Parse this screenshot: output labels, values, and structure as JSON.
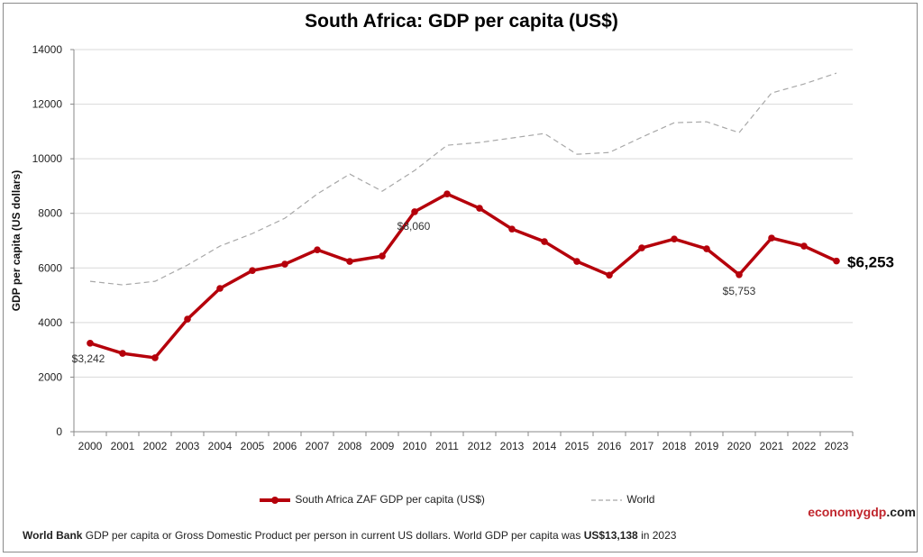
{
  "chart_data": {
    "type": "line",
    "title": "South Africa: GDP per capita (US$)",
    "ylabel": "GDP per capita (US dollars)",
    "xlabel": "",
    "ylim": [
      0,
      14000
    ],
    "yticks": [
      0,
      2000,
      4000,
      6000,
      8000,
      10000,
      12000,
      14000
    ],
    "grid": true,
    "legend_placement": "bottom",
    "categories": [
      "2000",
      "2001",
      "2002",
      "2003",
      "2004",
      "2005",
      "2006",
      "2007",
      "2008",
      "2009",
      "2010",
      "2011",
      "2012",
      "2013",
      "2014",
      "2015",
      "2016",
      "2017",
      "2018",
      "2019",
      "2020",
      "2021",
      "2022",
      "2023"
    ],
    "series": [
      {
        "name": "South Africa ZAF GDP per capita (US$)",
        "color": "#b5000b",
        "style": "solid-markers",
        "values": [
          3242,
          2870,
          2710,
          4125,
          5250,
          5905,
          6140,
          6665,
          6240,
          6435,
          8060,
          8710,
          8185,
          7425,
          6965,
          6240,
          5735,
          6735,
          7060,
          6700,
          5753,
          7095,
          6800,
          6253
        ]
      },
      {
        "name": "World",
        "color": "#a8a8a8",
        "style": "dashed",
        "values": [
          5510,
          5380,
          5510,
          6105,
          6800,
          7260,
          7820,
          8710,
          9440,
          8810,
          9570,
          10495,
          10595,
          10760,
          10925,
          10165,
          10230,
          10790,
          11320,
          11355,
          10955,
          12410,
          12740,
          13138
        ]
      }
    ],
    "annotations": [
      {
        "category": "2000",
        "text": "$3,242"
      },
      {
        "category": "2010",
        "text": "$8,060"
      },
      {
        "category": "2020",
        "text": "$5,753"
      },
      {
        "category": "2023",
        "text": "$6,253",
        "bold": true
      }
    ]
  },
  "brand": {
    "part1": "economy",
    "part2": "gdp",
    "part3": ".com"
  },
  "footer": {
    "source": "World Bank",
    "text1": " GDP per capita or Gross Domestic Product per person  in current US dollars.   World GDP per capita was ",
    "value": "US$13,138",
    "text2": "  in 2023"
  }
}
